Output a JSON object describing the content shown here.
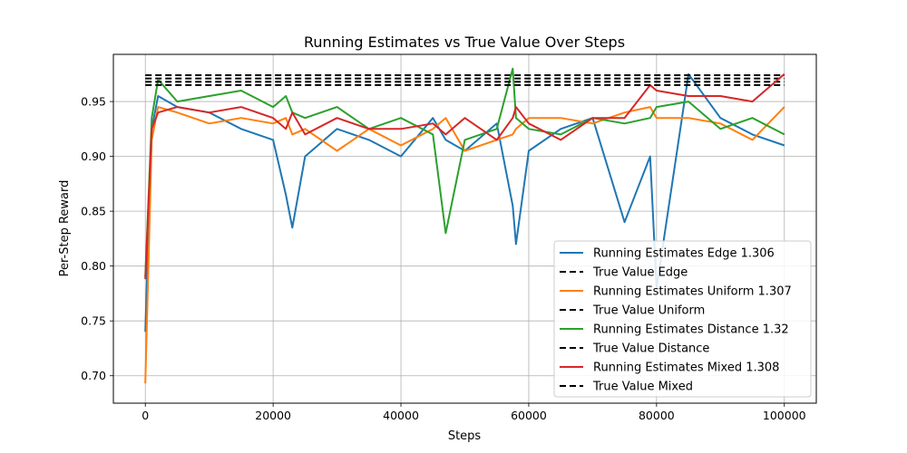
{
  "chart_data": {
    "type": "line",
    "title": "Running Estimates vs True Value Over Steps",
    "xlabel": "Steps",
    "ylabel": "Per-Step Reward",
    "xlim": [
      -5000,
      105000
    ],
    "ylim": [
      0.675,
      0.993
    ],
    "xticks": [
      0,
      20000,
      40000,
      60000,
      80000,
      100000
    ],
    "yticks": [
      0.7,
      0.75,
      0.8,
      0.85,
      0.9,
      0.95
    ],
    "xtick_labels": [
      "0",
      "20000",
      "40000",
      "60000",
      "80000",
      "100000"
    ],
    "ytick_labels": [
      "0.70",
      "0.75",
      "0.80",
      "0.85",
      "0.90",
      "0.95"
    ],
    "grid": true,
    "legend_position": "lower-right",
    "x": [
      0,
      1000,
      2000,
      5000,
      10000,
      15000,
      20000,
      22000,
      23000,
      25000,
      30000,
      35000,
      40000,
      45000,
      47000,
      50000,
      55000,
      57500,
      58000,
      60000,
      65000,
      70000,
      75000,
      79000,
      80000,
      85000,
      90000,
      95000,
      100000
    ],
    "series": [
      {
        "name": "Running Estimates Edge 1.306",
        "color": "#1f77b4",
        "style": "solid",
        "values": [
          0.74,
          0.925,
          0.955,
          0.945,
          0.94,
          0.925,
          0.915,
          0.865,
          0.835,
          0.9,
          0.925,
          0.915,
          0.9,
          0.935,
          0.915,
          0.905,
          0.93,
          0.855,
          0.82,
          0.905,
          0.925,
          0.935,
          0.84,
          0.9,
          0.78,
          0.975,
          0.935,
          0.92,
          0.91
        ]
      },
      {
        "name": "True Value Edge",
        "color": "#000000",
        "style": "dashed",
        "constant": 0.974
      },
      {
        "name": "Running Estimates Uniform 1.307",
        "color": "#ff7f0e",
        "style": "solid",
        "values": [
          0.693,
          0.915,
          0.945,
          0.94,
          0.93,
          0.935,
          0.93,
          0.935,
          0.92,
          0.925,
          0.905,
          0.925,
          0.91,
          0.925,
          0.935,
          0.905,
          0.915,
          0.92,
          0.925,
          0.935,
          0.935,
          0.93,
          0.94,
          0.945,
          0.935,
          0.935,
          0.93,
          0.915,
          0.945
        ]
      },
      {
        "name": "True Value Uniform",
        "color": "#000000",
        "style": "dashed",
        "constant": 0.971
      },
      {
        "name": "Running Estimates Distance 1.32",
        "color": "#2ca02c",
        "style": "solid",
        "values": [
          0.79,
          0.935,
          0.97,
          0.95,
          0.955,
          0.96,
          0.945,
          0.955,
          0.94,
          0.935,
          0.945,
          0.925,
          0.935,
          0.92,
          0.83,
          0.915,
          0.925,
          0.98,
          0.935,
          0.925,
          0.92,
          0.935,
          0.93,
          0.935,
          0.945,
          0.95,
          0.925,
          0.935,
          0.92
        ]
      },
      {
        "name": "True Value Distance",
        "color": "#000000",
        "style": "dashed",
        "constant": 0.968
      },
      {
        "name": "Running Estimates Mixed 1.308",
        "color": "#d62728",
        "style": "solid",
        "values": [
          0.788,
          0.925,
          0.94,
          0.945,
          0.94,
          0.945,
          0.935,
          0.925,
          0.94,
          0.92,
          0.935,
          0.925,
          0.925,
          0.93,
          0.92,
          0.935,
          0.915,
          0.935,
          0.945,
          0.93,
          0.915,
          0.935,
          0.935,
          0.965,
          0.96,
          0.955,
          0.955,
          0.95,
          0.975
        ]
      },
      {
        "name": "True Value Mixed",
        "color": "#000000",
        "style": "dashed",
        "constant": 0.965
      }
    ]
  }
}
